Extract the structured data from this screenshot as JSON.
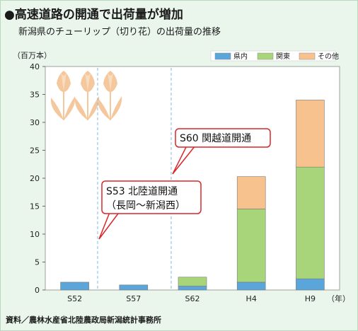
{
  "header": {
    "title": "●高速道路の開通で出荷量が増加",
    "subtitle": "新潟県のチューリップ（切り花）の出荷量の推移"
  },
  "source": "資料／農林水産省北陸農政局新潟統計事務所",
  "colors": {
    "kennai": "#5aa6db",
    "kanto": "#a8d57a",
    "other": "#f7c28e",
    "plot_bg": "#ffffff",
    "annotation_border": "#d9262b",
    "tulip": "#f5c79c"
  },
  "annotations": [
    {
      "text": "S60 関越道開通"
    },
    {
      "text": "S53 北陸道開通"
    },
    {
      "text": "（長岡〜新潟西）"
    }
  ],
  "chart_data": {
    "type": "bar",
    "stacked": true,
    "ylabel": "（百万本）",
    "xunit": "（年）",
    "categories": [
      "S52",
      "S57",
      "S62",
      "H4",
      "H9"
    ],
    "series": [
      {
        "name": "県内",
        "values": [
          1.4,
          0.9,
          0.7,
          1.4,
          2.0
        ]
      },
      {
        "name": "関東",
        "values": [
          0,
          0,
          1.6,
          13.1,
          20.0
        ]
      },
      {
        "name": "その他",
        "values": [
          0,
          0,
          0,
          5.8,
          12.0
        ]
      }
    ],
    "ylim": [
      0,
      40
    ],
    "yticks": [
      0,
      5,
      10,
      15,
      20,
      25,
      30,
      35,
      40
    ],
    "grid": false,
    "legend_position": "top-right",
    "event_markers": [
      "S53",
      "S60"
    ]
  }
}
